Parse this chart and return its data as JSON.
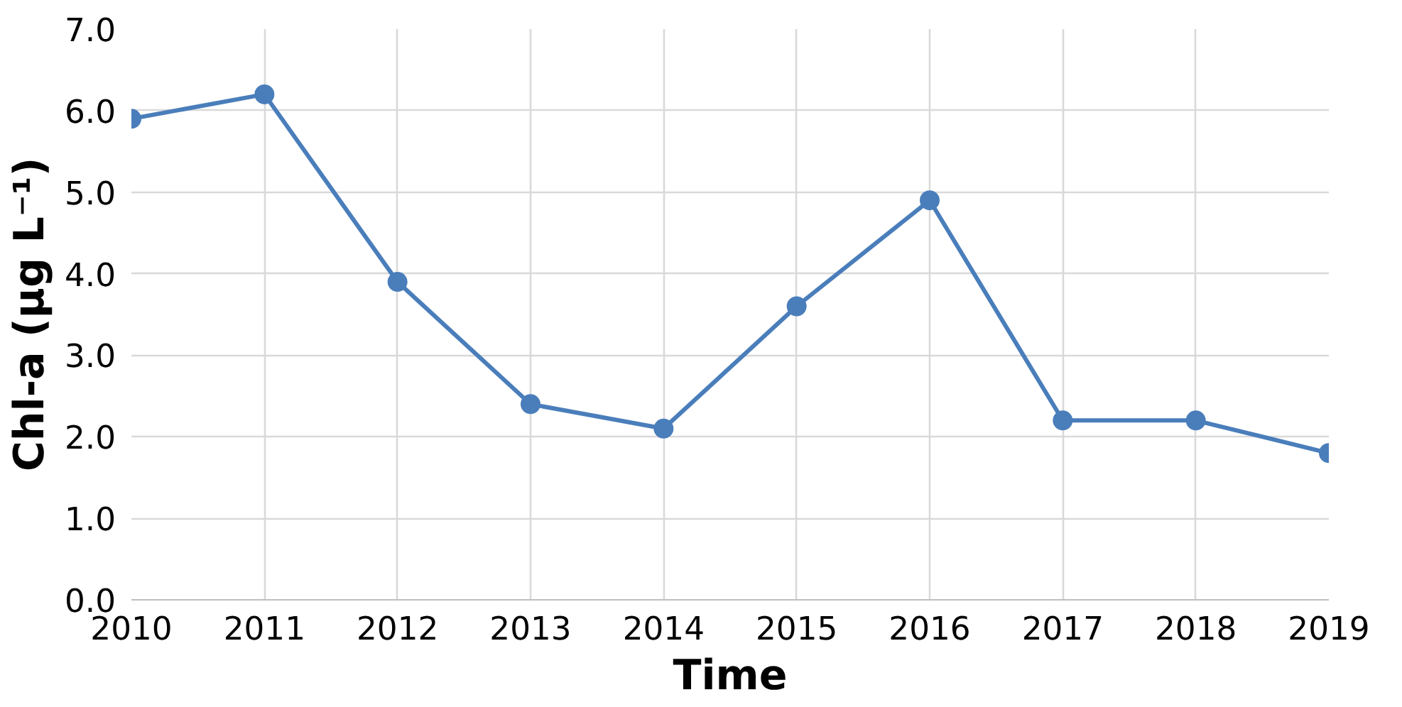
{
  "chart_data": {
    "type": "line",
    "xlabel": "Time",
    "ylabel": "Chl-a (μg L⁻¹)",
    "x": [
      2010,
      2011,
      2012,
      2013,
      2014,
      2015,
      2016,
      2017,
      2018,
      2019
    ],
    "series": [
      {
        "color": "#4a7ebb",
        "values": [
          5.9,
          6.2,
          3.9,
          2.4,
          2.1,
          3.6,
          4.9,
          2.2,
          2.2,
          1.8
        ]
      }
    ],
    "xlim": [
      2010,
      2019
    ],
    "xticks": [
      2010,
      2011,
      2012,
      2013,
      2014,
      2015,
      2016,
      2017,
      2018,
      2019
    ],
    "ylim": [
      0,
      7
    ],
    "yticks": [
      {
        "value": 0,
        "label": "0.0"
      },
      {
        "value": 1,
        "label": "1.0"
      },
      {
        "value": 2,
        "label": "2.0"
      },
      {
        "value": 3,
        "label": "3.0"
      },
      {
        "value": 4,
        "label": "4.0"
      },
      {
        "value": 5,
        "label": "5.0"
      },
      {
        "value": 6,
        "label": "6.0"
      },
      {
        "value": 7,
        "label": "7.0"
      }
    ],
    "grid": true,
    "marker": "circle",
    "line_style": "solid"
  }
}
